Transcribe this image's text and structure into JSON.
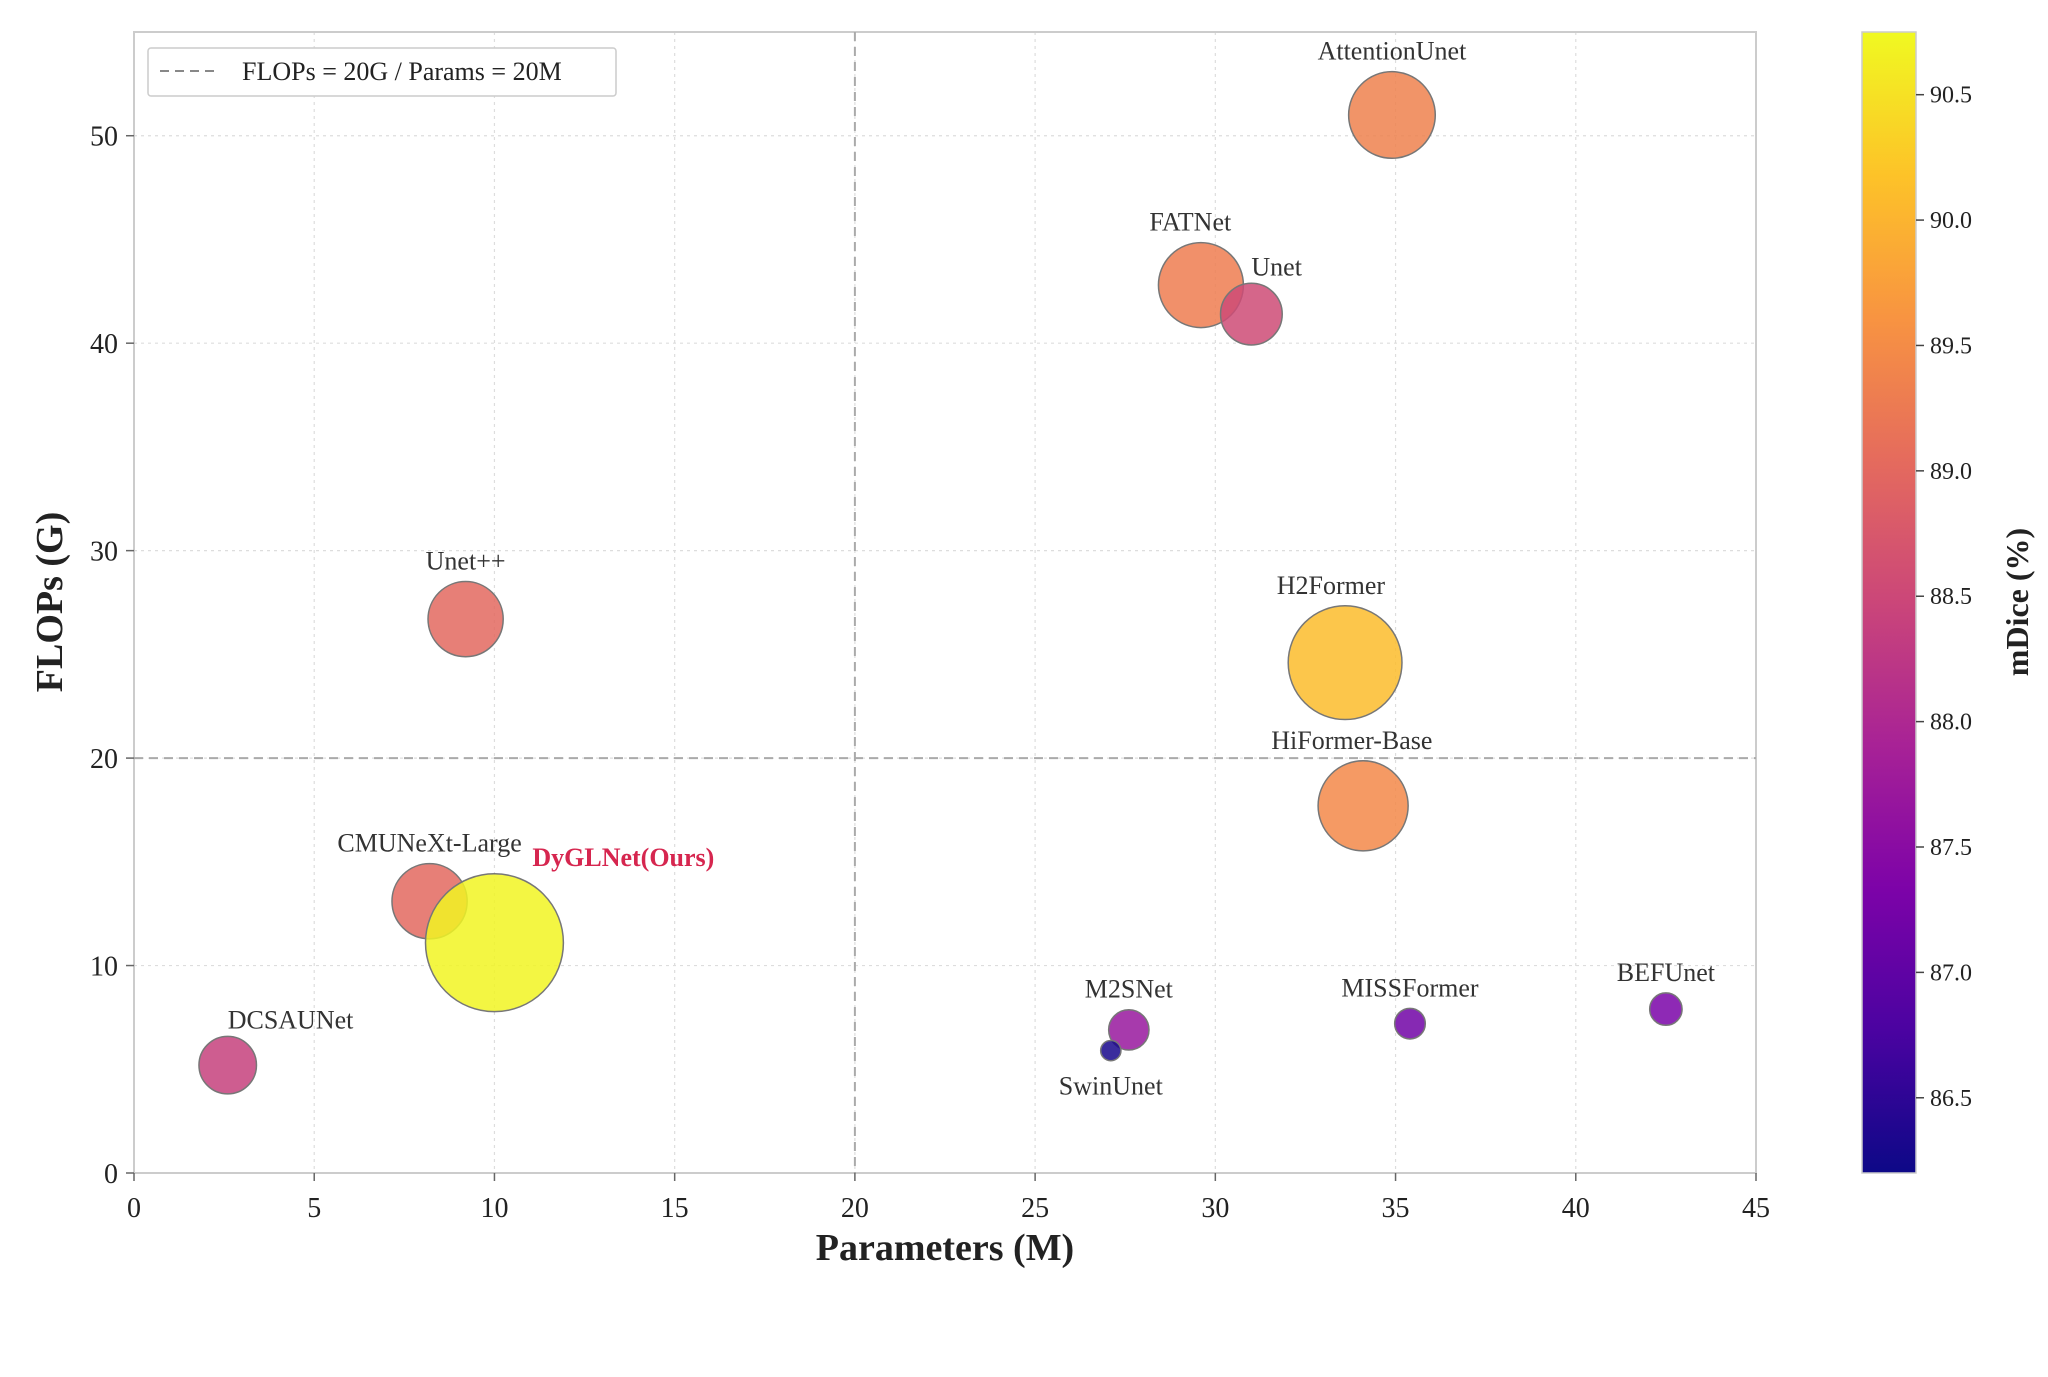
{
  "chart_data": {
    "type": "scatter",
    "xlabel": "Parameters (M)",
    "ylabel": "FLOPs (G)",
    "xlim": [
      0,
      45
    ],
    "ylim": [
      0,
      55
    ],
    "xticks": [
      0,
      5,
      10,
      15,
      20,
      25,
      30,
      35,
      40,
      45
    ],
    "yticks": [
      0,
      10,
      20,
      30,
      40,
      50
    ],
    "grid": true,
    "reference_lines": {
      "x": 20,
      "y": 20
    },
    "legend": {
      "entries": [
        "FLOPs = 20G / Params = 20M"
      ],
      "placement": "top-left"
    },
    "colorbar": {
      "label": "mDice (%)",
      "range": [
        86.2,
        90.75
      ],
      "ticks": [
        86.5,
        87.0,
        87.5,
        88.0,
        88.5,
        89.0,
        89.5,
        90.0,
        90.5
      ],
      "colormap": "plasma"
    },
    "points": [
      {
        "name": "AttentionUnet",
        "x": 34.9,
        "y": 51.0,
        "mdice": 89.35,
        "label_pos": "top"
      },
      {
        "name": "FATNet",
        "x": 29.6,
        "y": 42.8,
        "mdice": 89.3,
        "label_pos": "top-left"
      },
      {
        "name": "Unet",
        "x": 31.0,
        "y": 41.4,
        "mdice": 88.55,
        "label_pos": "top-right"
      },
      {
        "name": "Unet++",
        "x": 9.2,
        "y": 26.7,
        "mdice": 89.0,
        "label_pos": "top"
      },
      {
        "name": "H2Former",
        "x": 33.6,
        "y": 24.6,
        "mdice": 90.1,
        "label_pos": "top-left"
      },
      {
        "name": "HiFormer-Base",
        "x": 34.1,
        "y": 17.7,
        "mdice": 89.45,
        "label_pos": "top-left"
      },
      {
        "name": "CMUNeXt-Large",
        "x": 8.2,
        "y": 13.1,
        "mdice": 89.0,
        "label_pos": "top"
      },
      {
        "name": "DyGLNet(Ours)",
        "x": 10.0,
        "y": 11.1,
        "mdice": 90.7,
        "label_pos": "top-right",
        "highlight": true
      },
      {
        "name": "DCSAUNet",
        "x": 2.6,
        "y": 5.2,
        "mdice": 88.4,
        "label_pos": "top-right"
      },
      {
        "name": "M2SNet",
        "x": 27.6,
        "y": 6.9,
        "mdice": 87.7,
        "label_pos": "top"
      },
      {
        "name": "SwinUnet",
        "x": 27.1,
        "y": 5.9,
        "mdice": 86.3,
        "label_pos": "bottom"
      },
      {
        "name": "MISSFormer",
        "x": 35.4,
        "y": 7.2,
        "mdice": 87.2,
        "label_pos": "top"
      },
      {
        "name": "BEFUnet",
        "x": 42.5,
        "y": 7.9,
        "mdice": 87.3,
        "label_pos": "top"
      }
    ]
  }
}
